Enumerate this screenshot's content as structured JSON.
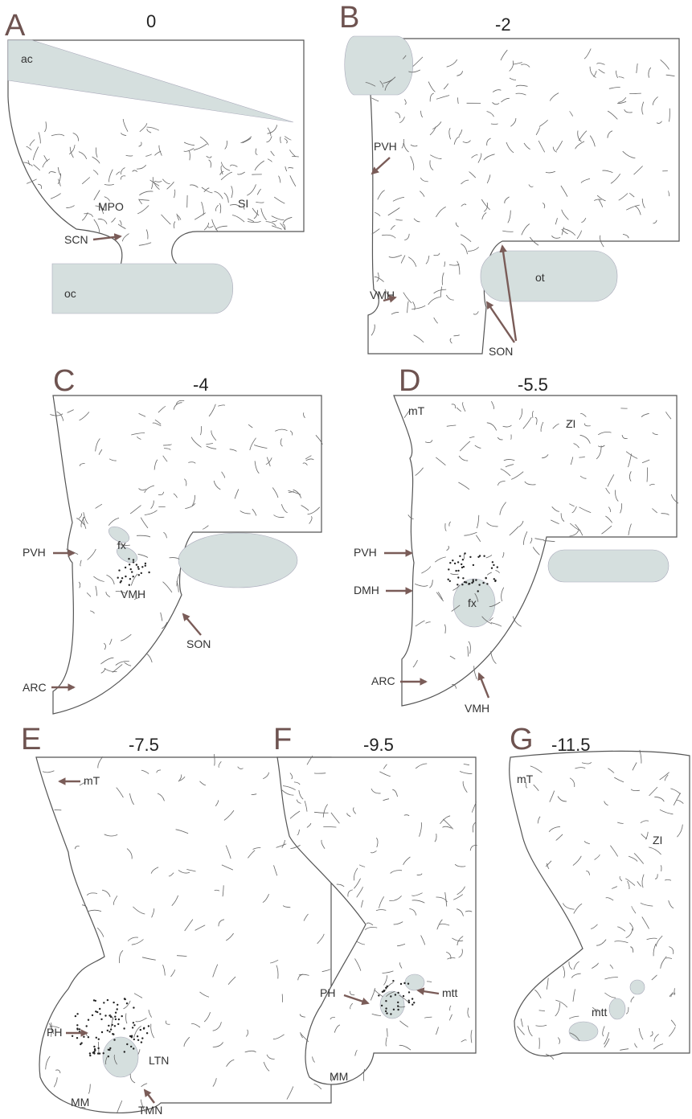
{
  "panels": [
    {
      "letter": "A",
      "level": "0",
      "labels": [
        "ac",
        "MPO",
        "SI",
        "SCN",
        "oc"
      ]
    },
    {
      "letter": "B",
      "level": "-2",
      "labels": [
        "PVH",
        "VMH",
        "ot",
        "SON"
      ]
    },
    {
      "letter": "C",
      "level": "-4",
      "labels": [
        "fx",
        "PVH",
        "VMH",
        "SON",
        "ARC"
      ]
    },
    {
      "letter": "D",
      "level": "-5.5",
      "labels": [
        "mT",
        "ZI",
        "PVH",
        "DMH",
        "fx",
        "ARC",
        "VMH"
      ]
    },
    {
      "letter": "E",
      "level": "-7.5",
      "labels": [
        "mT",
        "PH",
        "LTN",
        "MM",
        "TMN"
      ]
    },
    {
      "letter": "F",
      "level": "-9.5",
      "labels": [
        "PH",
        "mtt",
        "MM"
      ]
    },
    {
      "letter": "G",
      "level": "-11.5",
      "labels": [
        "mT",
        "ZI",
        "mtt"
      ]
    }
  ]
}
